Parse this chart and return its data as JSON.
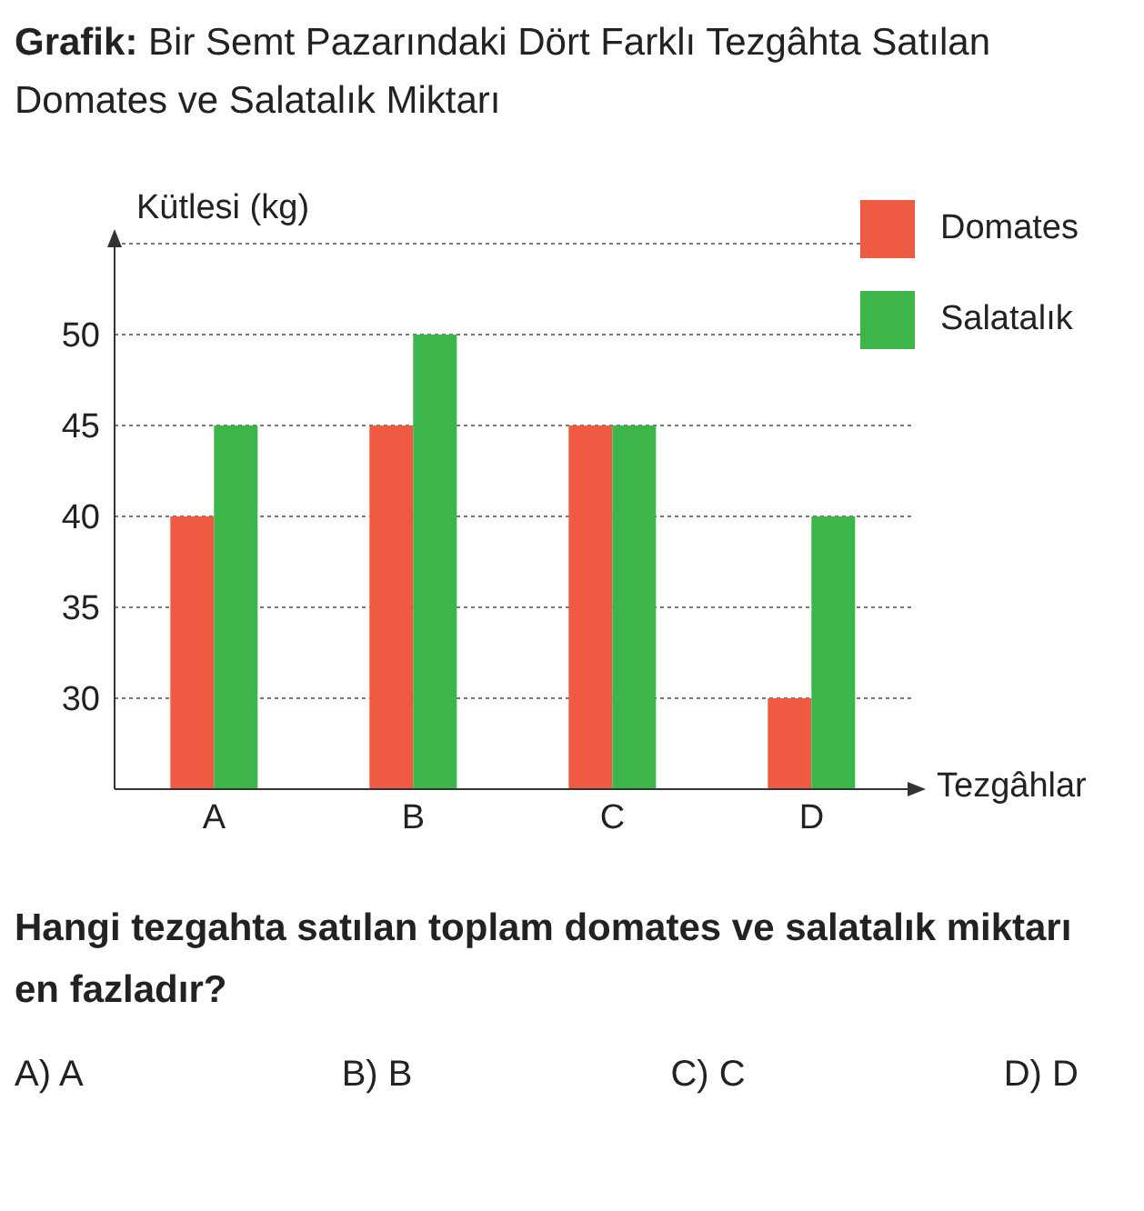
{
  "chart_data": {
    "type": "bar",
    "title": "Grafik: Bir Semt Pazarındaki Dört Farklı Tezgâhta Satılan Domates ve Salatalık Miktarı",
    "xlabel": "Tezgâhlar",
    "ylabel": "Kütlesi (kg)",
    "categories": [
      "A",
      "B",
      "C",
      "D"
    ],
    "series": [
      {
        "name": "Domates",
        "color": "#ef5a43",
        "values": [
          40,
          45,
          45,
          30
        ]
      },
      {
        "name": "Salatalık",
        "color": "#3cb54a",
        "values": [
          45,
          50,
          45,
          40
        ]
      }
    ],
    "ylim": [
      25,
      55
    ],
    "yticks": [
      30,
      35,
      40,
      45,
      50
    ],
    "grid": "y",
    "legend": "top right",
    "annotations": [
      "Hangi tezgahta satılan toplam domates ve salatalık miktarı en fazladır?",
      "A) A",
      "B) B",
      "C) C",
      "D) D"
    ]
  }
}
